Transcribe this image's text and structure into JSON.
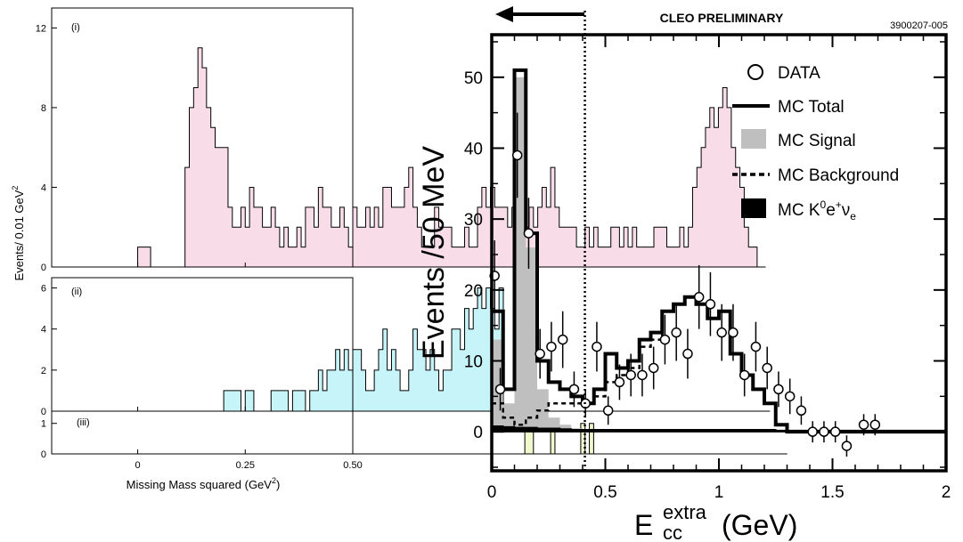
{
  "colors": {
    "panel1_fill": "#f8dde9",
    "panel2_fill": "#c6f4f8",
    "panel3_fill": "#f1f8cc",
    "mc_signal": "#bfbfbf",
    "mc_k0": "#000000"
  },
  "left": {
    "ylabel": "Events/ 0.01 GeV",
    "ylabel_sup": "2",
    "xlabel": "Missing Mass squared (GeV",
    "xlabel_sup": "2",
    "xlabel_end": ")"
  },
  "right": {
    "banner": "CLEO PRELIMINARY",
    "figure_id": "3900207-005",
    "arrow_icon": "left-arrow-icon",
    "ylabel": "Events /50 MeV",
    "xlabel_main": "E",
    "xlabel_sup": "extra",
    "xlabel_sub": "cc",
    "xlabel_unit": "(GeV)",
    "legend": {
      "data": "DATA",
      "total": "MC Total",
      "signal": "MC Signal",
      "background": "MC Background",
      "k0": {
        "base": "MC K",
        "sup1": "0",
        "mid": "e",
        "sup2": "+",
        "nu": "ν",
        "sub": "e"
      }
    }
  },
  "chart_data": [
    {
      "type": "bar",
      "panel": "(i)",
      "xlabel": "Missing Mass squared (GeV²)",
      "ylabel": "Events/ 0.01 GeV²",
      "xlim": [
        -0.2,
        0.5
      ],
      "ylim": [
        0,
        13
      ],
      "xticks": [
        {
          "v": 0,
          "label": "0"
        },
        {
          "v": 0.25,
          "label": "0.25"
        },
        {
          "v": 0.5,
          "label": "0.50"
        }
      ],
      "yticks": [
        {
          "v": 0,
          "label": "0"
        },
        {
          "v": 4,
          "label": "4"
        },
        {
          "v": 8,
          "label": "8"
        },
        {
          "v": 12,
          "label": "12"
        }
      ],
      "bin_start": -0.2,
      "bin_width": 0.01,
      "values": [
        0,
        0,
        0,
        0,
        0,
        0,
        0,
        0,
        0,
        0,
        0,
        0,
        0,
        0,
        0,
        0,
        0,
        0,
        0,
        0,
        1,
        1,
        1,
        0,
        0,
        0,
        0,
        0,
        0,
        0,
        0,
        5,
        8,
        9,
        11,
        10,
        8,
        7,
        6,
        6,
        6,
        3,
        2,
        2,
        3,
        2,
        4,
        3,
        3,
        2,
        2,
        3,
        2,
        1,
        2,
        1,
        1,
        2,
        1,
        3,
        3,
        2,
        4,
        3,
        3,
        2,
        2,
        3,
        2,
        1,
        3,
        2,
        2,
        3,
        2,
        3,
        2,
        4,
        4,
        3,
        3,
        3,
        4,
        5,
        3,
        2,
        1,
        1,
        1,
        3,
        2,
        2,
        2,
        1,
        1,
        1,
        2,
        1,
        1,
        3,
        4,
        3,
        4,
        3,
        3,
        3,
        2,
        3,
        2,
        3,
        2,
        3,
        2,
        3,
        4,
        3,
        5,
        3,
        2,
        2,
        2,
        2,
        1,
        1,
        2,
        1,
        2,
        1,
        1,
        1,
        2,
        2,
        1,
        2,
        1,
        2,
        1,
        1,
        1,
        1,
        2,
        2,
        2,
        1,
        1,
        1,
        2,
        1,
        2,
        4,
        5,
        6,
        7,
        8,
        7,
        8,
        9,
        8,
        6,
        5,
        4,
        2,
        1,
        1,
        0,
        0
      ]
    },
    {
      "type": "bar",
      "panel": "(ii)",
      "xlim": [
        -0.2,
        0.5
      ],
      "ylim": [
        0,
        6.5
      ],
      "yticks": [
        {
          "v": 0,
          "label": "0"
        },
        {
          "v": 2,
          "label": "2"
        },
        {
          "v": 4,
          "label": "4"
        },
        {
          "v": 6,
          "label": "6"
        }
      ],
      "bin_start": -0.2,
      "bin_width": 0.01,
      "values": [
        0,
        0,
        0,
        0,
        0,
        0,
        0,
        0,
        0,
        0,
        0,
        0,
        0,
        0,
        0,
        0,
        0,
        0,
        0,
        0,
        0,
        0,
        0,
        0,
        0,
        0,
        0,
        0,
        0,
        0,
        0,
        0,
        0,
        0,
        0,
        0,
        0,
        0,
        0,
        0,
        1,
        1,
        1,
        1,
        0,
        1,
        1,
        0,
        0,
        0,
        0,
        1,
        1,
        1,
        1,
        0,
        1,
        1,
        1,
        0,
        1,
        1,
        2,
        1,
        2,
        2,
        3,
        2,
        3,
        2,
        3,
        3,
        2,
        1,
        1,
        2,
        3,
        4,
        2,
        3,
        2,
        1,
        1,
        2,
        4,
        3,
        3,
        2,
        3,
        2,
        1,
        2,
        2,
        4,
        4,
        3,
        5,
        4,
        5,
        6,
        5,
        6,
        5,
        4,
        6,
        0,
        0,
        0,
        0,
        0,
        0,
        0,
        0,
        0,
        0,
        0,
        0,
        0,
        0,
        0,
        0,
        0,
        0,
        0,
        0,
        0,
        0,
        0,
        0,
        0,
        0,
        0,
        0,
        0,
        0,
        0,
        0,
        0,
        0,
        0,
        0,
        0,
        0,
        0,
        0,
        0,
        0,
        0,
        0,
        0,
        0,
        0,
        0,
        0,
        0,
        0,
        0,
        0,
        0,
        0,
        0,
        0,
        0,
        0,
        0,
        0,
        0
      ]
    },
    {
      "type": "bar",
      "panel": "(iii)",
      "xlim": [
        -0.2,
        0.5
      ],
      "ylim": [
        0,
        1.4
      ],
      "yticks": [
        {
          "v": 0,
          "label": "0"
        },
        {
          "v": 1,
          "label": "1"
        }
      ],
      "bin_start": -0.2,
      "bin_width": 0.01,
      "values": [
        0,
        0,
        0,
        0,
        0,
        0,
        0,
        0,
        0,
        0,
        0,
        0,
        0,
        0,
        0,
        0,
        0,
        0,
        0,
        0,
        0,
        0,
        0,
        0,
        0,
        0,
        0,
        0,
        0,
        0,
        0,
        0,
        0,
        0,
        0,
        0,
        0,
        0,
        0,
        0,
        0,
        0,
        0,
        0,
        0,
        0,
        0,
        0,
        0,
        0,
        0,
        0,
        0,
        0,
        0,
        0,
        0,
        0,
        0,
        0,
        0,
        0,
        0,
        0,
        0,
        0,
        0,
        0,
        0,
        0,
        0,
        0,
        0,
        0,
        0,
        0,
        0,
        0,
        0,
        0,
        0,
        0,
        0,
        0,
        0,
        0,
        0,
        0,
        0,
        0,
        0,
        0,
        0,
        0,
        0,
        0,
        0,
        0,
        0,
        0,
        0,
        0,
        0,
        0,
        0,
        0,
        0,
        0,
        0,
        0,
        1,
        1,
        0,
        0,
        0,
        0,
        1,
        0,
        0,
        0,
        0,
        0,
        0,
        1,
        0,
        1,
        0,
        0,
        0,
        0,
        0,
        0,
        0,
        0,
        0,
        0,
        0,
        0,
        0,
        0,
        0,
        0,
        0,
        0,
        0,
        0,
        0,
        0,
        0,
        0,
        0,
        0,
        0,
        0,
        0,
        0,
        0,
        0,
        0,
        0,
        0,
        0,
        0,
        0,
        0,
        0,
        0,
        0,
        0,
        0,
        0
      ]
    },
    {
      "type": "histogram",
      "title": "CLEO PRELIMINARY",
      "xlabel": "E_cc^extra (GeV)",
      "ylabel": "Events /50 MeV",
      "xlim": [
        0,
        2
      ],
      "ylim": [
        -5.5,
        56
      ],
      "xticks": [
        {
          "v": 0,
          "label": "0"
        },
        {
          "v": 0.5,
          "label": "0.5"
        },
        {
          "v": 1,
          "label": "1"
        },
        {
          "v": 1.5,
          "label": "1.5"
        },
        {
          "v": 2,
          "label": "2"
        }
      ],
      "yticks": [
        {
          "v": 0,
          "label": "0"
        },
        {
          "v": 10,
          "label": "10"
        },
        {
          "v": 20,
          "label": "20"
        },
        {
          "v": 30,
          "label": "30"
        },
        {
          "v": 40,
          "label": "40"
        },
        {
          "v": 50,
          "label": "50"
        }
      ],
      "cut_line_x": 0.41,
      "bin_width": 0.05,
      "series": [
        {
          "name": "MC Total",
          "style": "step",
          "values": [
            17,
            6,
            51,
            28,
            10,
            7,
            6,
            5,
            4,
            6,
            11,
            9,
            10,
            13,
            14,
            17,
            18,
            19,
            18,
            16,
            17,
            11,
            8,
            6,
            4,
            1,
            0,
            0,
            0,
            0,
            0,
            0,
            0,
            0,
            0,
            0,
            0,
            0,
            0,
            0
          ]
        },
        {
          "name": "MC Signal",
          "style": "filled-step",
          "values": [
            13,
            4,
            50,
            26,
            6,
            2,
            1,
            0.5,
            0.3,
            0.2,
            0.1,
            0,
            0,
            0,
            0,
            0,
            0,
            0,
            0,
            0,
            0,
            0,
            0,
            0,
            0,
            0,
            0,
            0,
            0,
            0,
            0,
            0,
            0,
            0,
            0,
            0,
            0,
            0,
            0,
            0
          ]
        },
        {
          "name": "MC Background",
          "style": "dashed-step",
          "values": [
            4,
            2,
            1,
            2,
            3,
            4,
            4,
            4,
            4,
            5,
            7,
            8,
            9,
            12,
            13,
            17,
            18,
            19,
            18,
            16,
            17,
            11,
            8,
            6,
            4,
            1,
            0,
            0,
            0,
            0,
            0,
            0,
            0,
            0,
            0,
            0,
            0,
            0,
            0,
            0
          ]
        },
        {
          "name": "MC K0e+νe",
          "style": "black-fill",
          "values": [
            0.8,
            0.7,
            0.6,
            0.6,
            0.5,
            0.5,
            0.4,
            0.3,
            0.3,
            0.3,
            0.3,
            0.3,
            0.3,
            0.3,
            0.3,
            0.3,
            0.3,
            0.3,
            0.3,
            0.3,
            0.3,
            0.3,
            0.3,
            0.3,
            0.3,
            0.2,
            0.2,
            0.2,
            0.2,
            0.2,
            0.2,
            0.2,
            0.2,
            0.2,
            0.2,
            0.2,
            0.2,
            0.2,
            0.2,
            0.2
          ]
        },
        {
          "name": "DATA",
          "style": "points",
          "points": [
            {
              "x": 0.0125,
              "y": 22,
              "err": 5
            },
            {
              "x": 0.0375,
              "y": 6,
              "err": 3
            },
            {
              "x": 0.1125,
              "y": 39,
              "err": 6
            },
            {
              "x": 0.1625,
              "y": 28,
              "err": 5
            },
            {
              "x": 0.2125,
              "y": 11,
              "err": 3.5
            },
            {
              "x": 0.2625,
              "y": 12,
              "err": 3.5
            },
            {
              "x": 0.3125,
              "y": 13,
              "err": 4
            },
            {
              "x": 0.3625,
              "y": 6,
              "err": 2.5
            },
            {
              "x": 0.4125,
              "y": 4,
              "err": 2
            },
            {
              "x": 0.4625,
              "y": 12,
              "err": 3.5
            },
            {
              "x": 0.5125,
              "y": 3,
              "err": 2
            },
            {
              "x": 0.5625,
              "y": 7,
              "err": 2.5
            },
            {
              "x": 0.6125,
              "y": 8,
              "err": 3
            },
            {
              "x": 0.6625,
              "y": 8,
              "err": 3
            },
            {
              "x": 0.7125,
              "y": 9,
              "err": 3
            },
            {
              "x": 0.7625,
              "y": 13,
              "err": 3.5
            },
            {
              "x": 0.8125,
              "y": 14,
              "err": 4
            },
            {
              "x": 0.8625,
              "y": 11,
              "err": 3.5
            },
            {
              "x": 0.9125,
              "y": 19,
              "err": 4.5
            },
            {
              "x": 0.9625,
              "y": 18,
              "err": 4.5
            },
            {
              "x": 1.0125,
              "y": 14,
              "err": 4
            },
            {
              "x": 1.0625,
              "y": 14,
              "err": 4
            },
            {
              "x": 1.1125,
              "y": 8,
              "err": 3
            },
            {
              "x": 1.1625,
              "y": 12,
              "err": 3.5
            },
            {
              "x": 1.2125,
              "y": 9,
              "err": 3
            },
            {
              "x": 1.2625,
              "y": 6,
              "err": 2.5
            },
            {
              "x": 1.3125,
              "y": 5,
              "err": 2.5
            },
            {
              "x": 1.3625,
              "y": 3,
              "err": 2
            },
            {
              "x": 1.4125,
              "y": 0,
              "err": 1.5
            },
            {
              "x": 1.4625,
              "y": 0,
              "err": 1.5
            },
            {
              "x": 1.5125,
              "y": 0,
              "err": 1.5
            },
            {
              "x": 1.5625,
              "y": -2,
              "err": 1.5
            },
            {
              "x": 1.6375,
              "y": 1,
              "err": 1.5
            },
            {
              "x": 1.6875,
              "y": 1,
              "err": 1.5
            }
          ]
        }
      ]
    }
  ]
}
